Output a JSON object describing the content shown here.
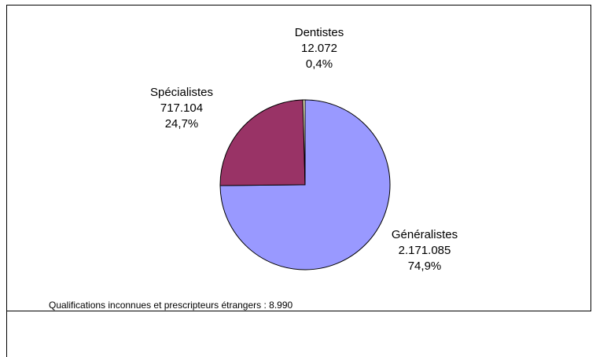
{
  "chart_data": {
    "type": "pie",
    "categories": [
      "Généralistes",
      "Spécialistes",
      "Dentistes"
    ],
    "values": [
      2171085,
      717104,
      12072
    ],
    "value_labels": [
      "2.171.085",
      "717.104",
      "12.072"
    ],
    "percents": [
      74.9,
      24.7,
      0.4
    ],
    "percent_labels": [
      "74,9%",
      "24,7%",
      "0,4%"
    ],
    "colors": [
      "#9999ff",
      "#993366",
      "#ffffcc"
    ],
    "note": "Qualifications inconnues et prescripteurs étrangers :  8.990"
  }
}
